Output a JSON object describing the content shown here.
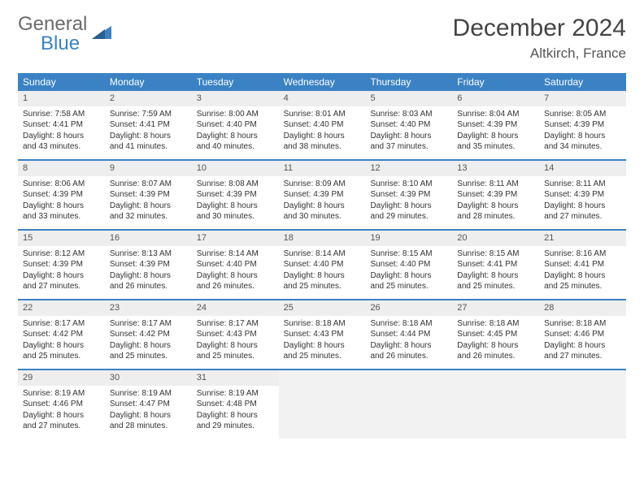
{
  "logo": {
    "text1": "General",
    "text2": "Blue"
  },
  "title": "December 2024",
  "location": "Altkirch, France",
  "colors": {
    "header_bg": "#3b82c4",
    "header_text": "#ffffff",
    "daynum_bg": "#eeeeee",
    "empty_bg": "#f2f2f2",
    "border": "#3b82c4"
  },
  "day_names": [
    "Sunday",
    "Monday",
    "Tuesday",
    "Wednesday",
    "Thursday",
    "Friday",
    "Saturday"
  ],
  "weeks": [
    [
      {
        "n": "1",
        "sr": "Sunrise: 7:58 AM",
        "ss": "Sunset: 4:41 PM",
        "d1": "Daylight: 8 hours",
        "d2": "and 43 minutes."
      },
      {
        "n": "2",
        "sr": "Sunrise: 7:59 AM",
        "ss": "Sunset: 4:41 PM",
        "d1": "Daylight: 8 hours",
        "d2": "and 41 minutes."
      },
      {
        "n": "3",
        "sr": "Sunrise: 8:00 AM",
        "ss": "Sunset: 4:40 PM",
        "d1": "Daylight: 8 hours",
        "d2": "and 40 minutes."
      },
      {
        "n": "4",
        "sr": "Sunrise: 8:01 AM",
        "ss": "Sunset: 4:40 PM",
        "d1": "Daylight: 8 hours",
        "d2": "and 38 minutes."
      },
      {
        "n": "5",
        "sr": "Sunrise: 8:03 AM",
        "ss": "Sunset: 4:40 PM",
        "d1": "Daylight: 8 hours",
        "d2": "and 37 minutes."
      },
      {
        "n": "6",
        "sr": "Sunrise: 8:04 AM",
        "ss": "Sunset: 4:39 PM",
        "d1": "Daylight: 8 hours",
        "d2": "and 35 minutes."
      },
      {
        "n": "7",
        "sr": "Sunrise: 8:05 AM",
        "ss": "Sunset: 4:39 PM",
        "d1": "Daylight: 8 hours",
        "d2": "and 34 minutes."
      }
    ],
    [
      {
        "n": "8",
        "sr": "Sunrise: 8:06 AM",
        "ss": "Sunset: 4:39 PM",
        "d1": "Daylight: 8 hours",
        "d2": "and 33 minutes."
      },
      {
        "n": "9",
        "sr": "Sunrise: 8:07 AM",
        "ss": "Sunset: 4:39 PM",
        "d1": "Daylight: 8 hours",
        "d2": "and 32 minutes."
      },
      {
        "n": "10",
        "sr": "Sunrise: 8:08 AM",
        "ss": "Sunset: 4:39 PM",
        "d1": "Daylight: 8 hours",
        "d2": "and 30 minutes."
      },
      {
        "n": "11",
        "sr": "Sunrise: 8:09 AM",
        "ss": "Sunset: 4:39 PM",
        "d1": "Daylight: 8 hours",
        "d2": "and 30 minutes."
      },
      {
        "n": "12",
        "sr": "Sunrise: 8:10 AM",
        "ss": "Sunset: 4:39 PM",
        "d1": "Daylight: 8 hours",
        "d2": "and 29 minutes."
      },
      {
        "n": "13",
        "sr": "Sunrise: 8:11 AM",
        "ss": "Sunset: 4:39 PM",
        "d1": "Daylight: 8 hours",
        "d2": "and 28 minutes."
      },
      {
        "n": "14",
        "sr": "Sunrise: 8:11 AM",
        "ss": "Sunset: 4:39 PM",
        "d1": "Daylight: 8 hours",
        "d2": "and 27 minutes."
      }
    ],
    [
      {
        "n": "15",
        "sr": "Sunrise: 8:12 AM",
        "ss": "Sunset: 4:39 PM",
        "d1": "Daylight: 8 hours",
        "d2": "and 27 minutes."
      },
      {
        "n": "16",
        "sr": "Sunrise: 8:13 AM",
        "ss": "Sunset: 4:39 PM",
        "d1": "Daylight: 8 hours",
        "d2": "and 26 minutes."
      },
      {
        "n": "17",
        "sr": "Sunrise: 8:14 AM",
        "ss": "Sunset: 4:40 PM",
        "d1": "Daylight: 8 hours",
        "d2": "and 26 minutes."
      },
      {
        "n": "18",
        "sr": "Sunrise: 8:14 AM",
        "ss": "Sunset: 4:40 PM",
        "d1": "Daylight: 8 hours",
        "d2": "and 25 minutes."
      },
      {
        "n": "19",
        "sr": "Sunrise: 8:15 AM",
        "ss": "Sunset: 4:40 PM",
        "d1": "Daylight: 8 hours",
        "d2": "and 25 minutes."
      },
      {
        "n": "20",
        "sr": "Sunrise: 8:15 AM",
        "ss": "Sunset: 4:41 PM",
        "d1": "Daylight: 8 hours",
        "d2": "and 25 minutes."
      },
      {
        "n": "21",
        "sr": "Sunrise: 8:16 AM",
        "ss": "Sunset: 4:41 PM",
        "d1": "Daylight: 8 hours",
        "d2": "and 25 minutes."
      }
    ],
    [
      {
        "n": "22",
        "sr": "Sunrise: 8:17 AM",
        "ss": "Sunset: 4:42 PM",
        "d1": "Daylight: 8 hours",
        "d2": "and 25 minutes."
      },
      {
        "n": "23",
        "sr": "Sunrise: 8:17 AM",
        "ss": "Sunset: 4:42 PM",
        "d1": "Daylight: 8 hours",
        "d2": "and 25 minutes."
      },
      {
        "n": "24",
        "sr": "Sunrise: 8:17 AM",
        "ss": "Sunset: 4:43 PM",
        "d1": "Daylight: 8 hours",
        "d2": "and 25 minutes."
      },
      {
        "n": "25",
        "sr": "Sunrise: 8:18 AM",
        "ss": "Sunset: 4:43 PM",
        "d1": "Daylight: 8 hours",
        "d2": "and 25 minutes."
      },
      {
        "n": "26",
        "sr": "Sunrise: 8:18 AM",
        "ss": "Sunset: 4:44 PM",
        "d1": "Daylight: 8 hours",
        "d2": "and 26 minutes."
      },
      {
        "n": "27",
        "sr": "Sunrise: 8:18 AM",
        "ss": "Sunset: 4:45 PM",
        "d1": "Daylight: 8 hours",
        "d2": "and 26 minutes."
      },
      {
        "n": "28",
        "sr": "Sunrise: 8:18 AM",
        "ss": "Sunset: 4:46 PM",
        "d1": "Daylight: 8 hours",
        "d2": "and 27 minutes."
      }
    ],
    [
      {
        "n": "29",
        "sr": "Sunrise: 8:19 AM",
        "ss": "Sunset: 4:46 PM",
        "d1": "Daylight: 8 hours",
        "d2": "and 27 minutes."
      },
      {
        "n": "30",
        "sr": "Sunrise: 8:19 AM",
        "ss": "Sunset: 4:47 PM",
        "d1": "Daylight: 8 hours",
        "d2": "and 28 minutes."
      },
      {
        "n": "31",
        "sr": "Sunrise: 8:19 AM",
        "ss": "Sunset: 4:48 PM",
        "d1": "Daylight: 8 hours",
        "d2": "and 29 minutes."
      },
      null,
      null,
      null,
      null
    ]
  ]
}
